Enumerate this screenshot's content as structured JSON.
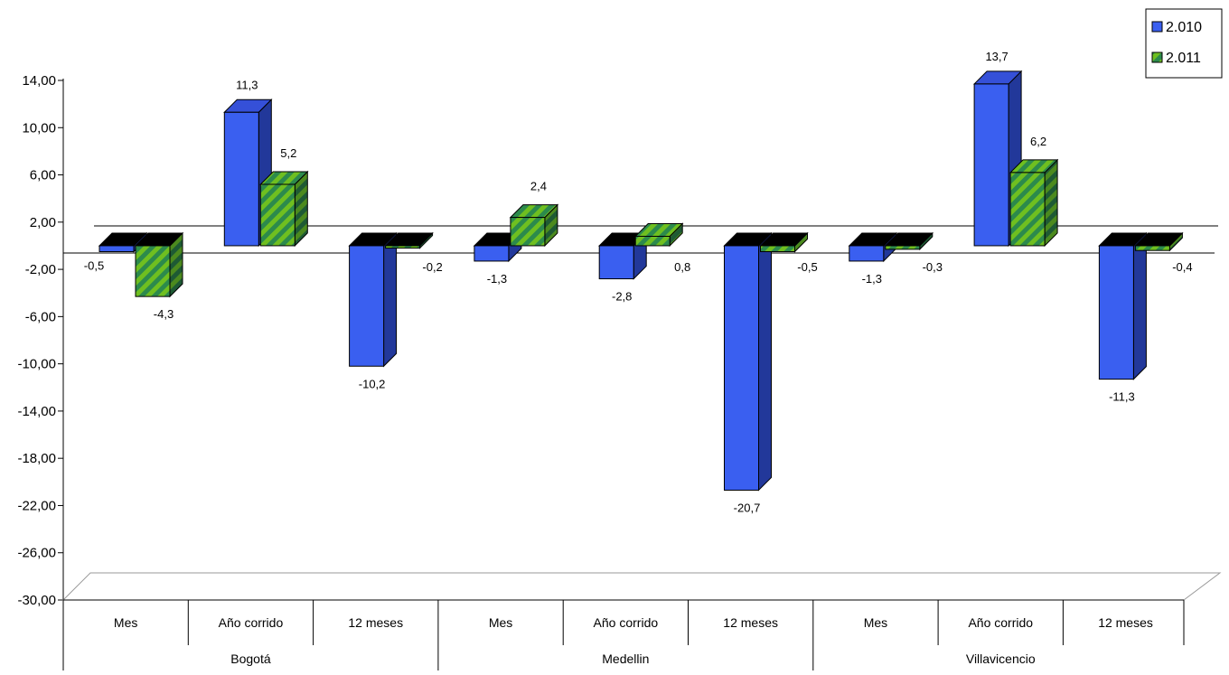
{
  "chart_data": {
    "type": "bar",
    "title": "",
    "xlabel": "",
    "ylabel": "",
    "ylim": [
      -30,
      14
    ],
    "y_ticks": [
      "14,00",
      "10,00",
      "6,00",
      "2,00",
      "-2,00",
      "-6,00",
      "-10,00",
      "-14,00",
      "-18,00",
      "-22,00",
      "-26,00",
      "-30,00"
    ],
    "y_tick_values": [
      14,
      10,
      6,
      2,
      -2,
      -6,
      -10,
      -14,
      -18,
      -22,
      -26,
      -30
    ],
    "groups": [
      "Bogotá",
      "Medellin",
      "Villavicencio"
    ],
    "categories": [
      "Mes",
      "Año corrido",
      "12 meses",
      "Mes",
      "Año corrido",
      "12 meses",
      "Mes",
      "Año corrido",
      "12 meses"
    ],
    "series": [
      {
        "name": "2.010",
        "values": [
          -0.5,
          11.3,
          -10.2,
          -1.3,
          -2.8,
          -20.7,
          -1.3,
          13.7,
          -11.3
        ],
        "labels": [
          "-0,5",
          "11,3",
          "-10,2",
          "-1,3",
          "-2,8",
          "-20,7",
          "-1,3",
          "13,7",
          "-11,3"
        ],
        "color": "#3a5ff0",
        "color_side": "#22389a",
        "color_top": "#3550d8"
      },
      {
        "name": "2.011",
        "values": [
          -4.3,
          5.2,
          -0.2,
          2.4,
          0.8,
          -0.5,
          -0.3,
          6.2,
          -0.4
        ],
        "labels": [
          "-4,3",
          "5,2",
          "-0,2",
          "2,4",
          "0,8",
          "-0,5",
          "-0,3",
          "6,2",
          "-0,4"
        ],
        "color": "#6fbf20",
        "color_stripe": "#2c8a4c",
        "color_side": "#2f6b2a"
      }
    ],
    "legend_position": "top-right",
    "grid": false
  }
}
